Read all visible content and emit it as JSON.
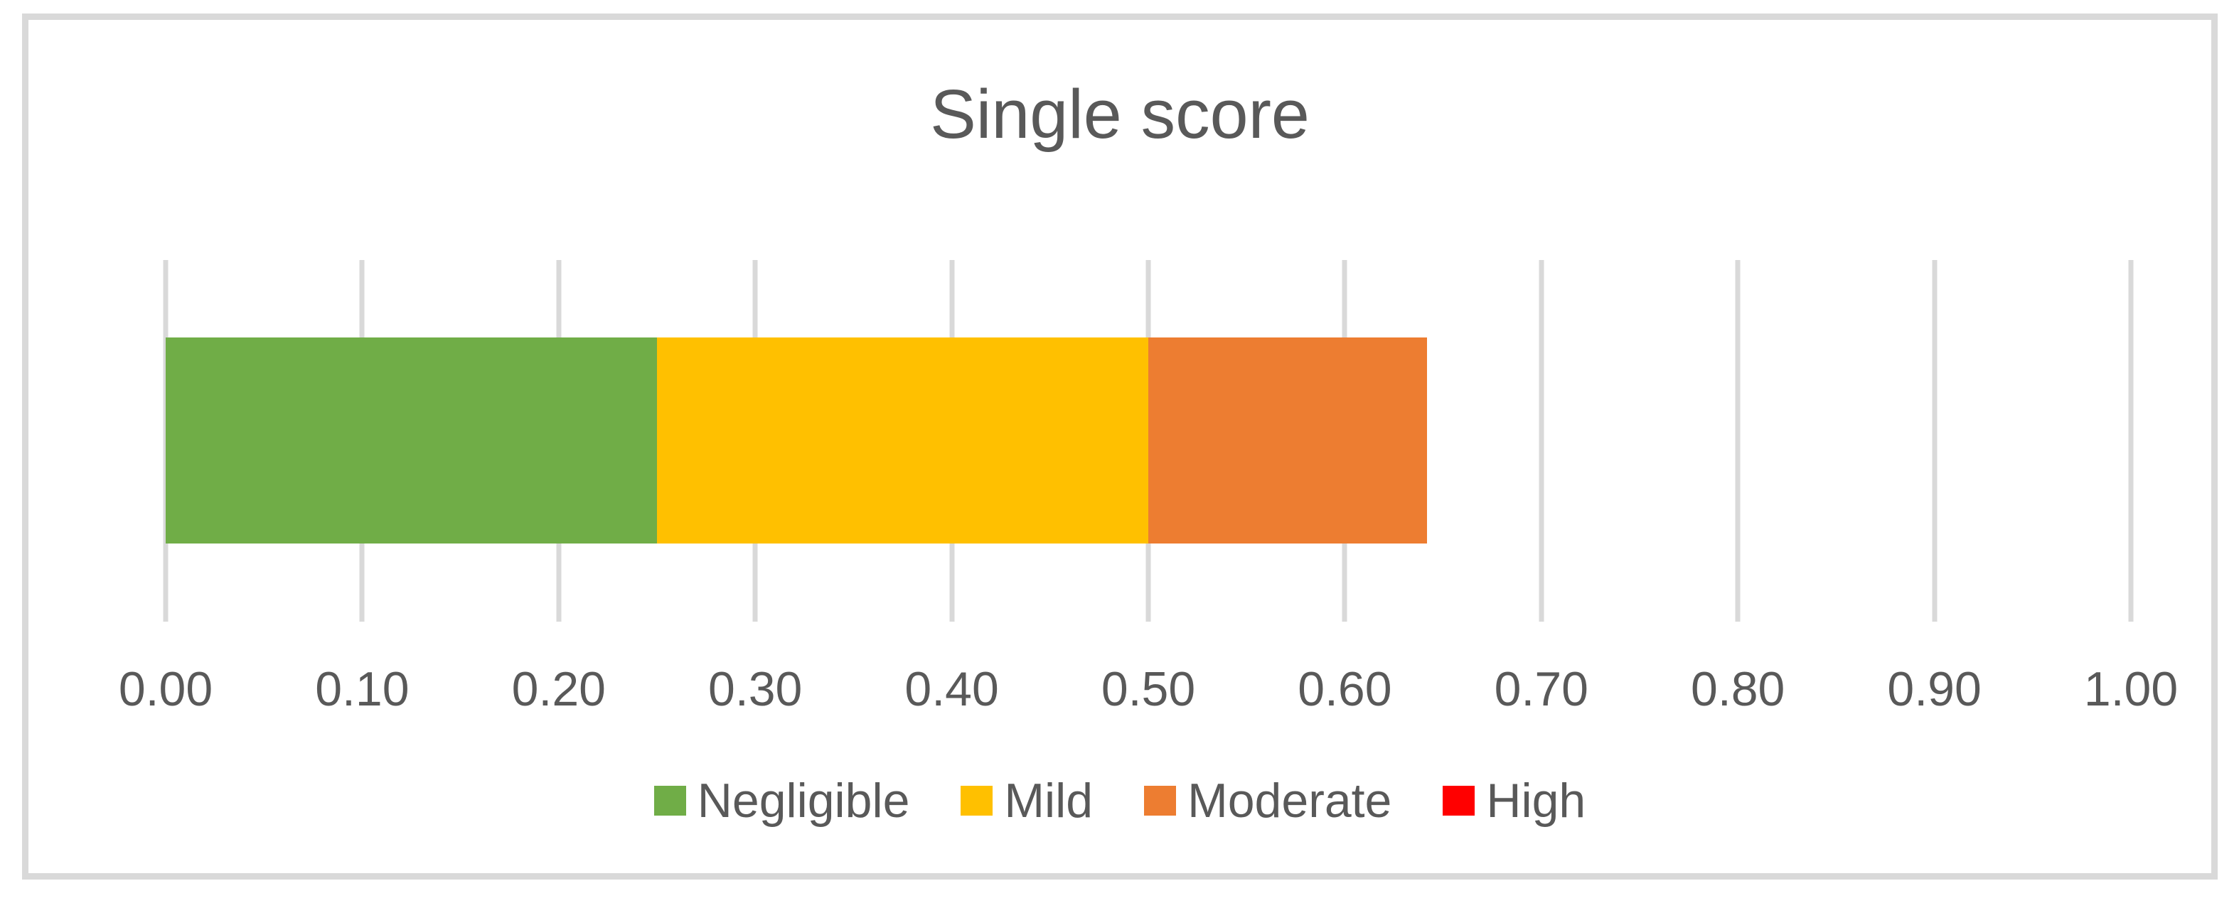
{
  "chart_data": {
    "type": "bar",
    "variant": "horizontal-stacked",
    "title": "Single score",
    "xlabel": "",
    "ylabel": "",
    "xlim": [
      0,
      1
    ],
    "x_tick_step": 0.1,
    "x_ticks": [
      "0.00",
      "0.10",
      "0.20",
      "0.30",
      "0.40",
      "0.50",
      "0.60",
      "0.70",
      "0.80",
      "0.90",
      "1.00"
    ],
    "grid": "vertical-gridlines-on",
    "legend_position": "bottom",
    "series": [
      {
        "name": "Negligible",
        "value": 0.25,
        "color": "#70AD47"
      },
      {
        "name": "Mild",
        "value": 0.25,
        "color": "#FFC000"
      },
      {
        "name": "Moderate",
        "value": 0.142,
        "color": "#ED7D31"
      },
      {
        "name": "High",
        "value": 0.0,
        "color": "#FF0000"
      }
    ],
    "bar_total": 0.642
  },
  "colors": {
    "text": "#595959",
    "gridline": "#D9D9D9",
    "frame_border": "#D9D9D9",
    "background": "#FFFFFF"
  }
}
